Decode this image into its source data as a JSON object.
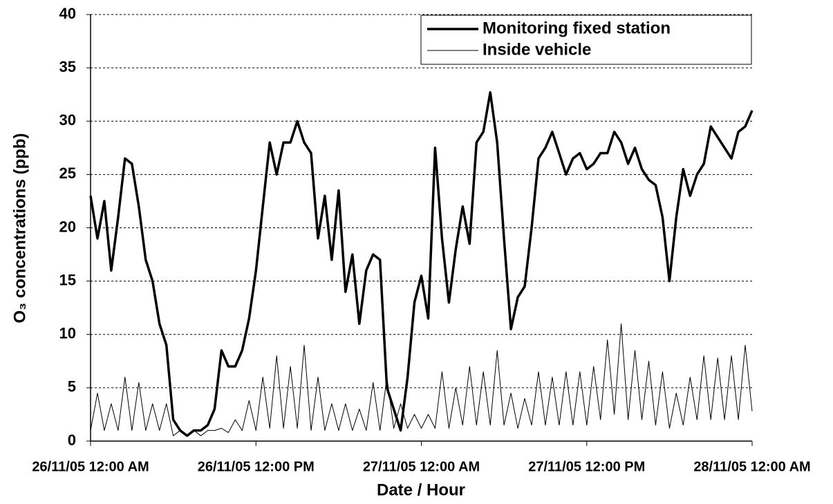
{
  "chart_data": {
    "type": "line",
    "xlabel": "Date / Hour",
    "ylabel": "O₃ concentrations (ppb)",
    "x": [
      "2005-11-26 00:00",
      "2005-11-26 00:30",
      "2005-11-26 01:00",
      "2005-11-26 01:30",
      "2005-11-26 02:00",
      "2005-11-26 02:30",
      "2005-11-26 03:00",
      "2005-11-26 03:30",
      "2005-11-26 04:00",
      "2005-11-26 04:30",
      "2005-11-26 05:00",
      "2005-11-26 05:30",
      "2005-11-26 06:00",
      "2005-11-26 06:30",
      "2005-11-26 07:00",
      "2005-11-26 07:30",
      "2005-11-26 08:00",
      "2005-11-26 08:30",
      "2005-11-26 09:00",
      "2005-11-26 09:30",
      "2005-11-26 10:00",
      "2005-11-26 10:30",
      "2005-11-26 11:00",
      "2005-11-26 11:30",
      "2005-11-26 12:00",
      "2005-11-26 12:30",
      "2005-11-26 13:00",
      "2005-11-26 13:30",
      "2005-11-26 14:00",
      "2005-11-26 14:30",
      "2005-11-26 15:00",
      "2005-11-26 15:30",
      "2005-11-26 16:00",
      "2005-11-26 16:30",
      "2005-11-26 17:00",
      "2005-11-26 17:30",
      "2005-11-26 18:00",
      "2005-11-26 18:30",
      "2005-11-26 19:00",
      "2005-11-26 19:30",
      "2005-11-26 20:00",
      "2005-11-26 20:30",
      "2005-11-26 21:00",
      "2005-11-26 21:30",
      "2005-11-26 22:00",
      "2005-11-26 22:30",
      "2005-11-26 23:00",
      "2005-11-26 23:30",
      "2005-11-27 00:00",
      "2005-11-27 00:30",
      "2005-11-27 01:00",
      "2005-11-27 01:30",
      "2005-11-27 02:00",
      "2005-11-27 02:30",
      "2005-11-27 03:00",
      "2005-11-27 03:30",
      "2005-11-27 04:00",
      "2005-11-27 04:30",
      "2005-11-27 05:00",
      "2005-11-27 05:30",
      "2005-11-27 06:00",
      "2005-11-27 06:30",
      "2005-11-27 07:00",
      "2005-11-27 07:30",
      "2005-11-27 08:00",
      "2005-11-27 08:30",
      "2005-11-27 09:00",
      "2005-11-27 09:30",
      "2005-11-27 10:00",
      "2005-11-27 10:30",
      "2005-11-27 11:00",
      "2005-11-27 11:30",
      "2005-11-27 12:00",
      "2005-11-27 12:30",
      "2005-11-27 13:00",
      "2005-11-27 13:30",
      "2005-11-27 14:00",
      "2005-11-27 14:30",
      "2005-11-27 15:00",
      "2005-11-27 15:30",
      "2005-11-27 16:00",
      "2005-11-27 16:30",
      "2005-11-27 17:00",
      "2005-11-27 17:30",
      "2005-11-27 18:00",
      "2005-11-27 18:30",
      "2005-11-27 19:00",
      "2005-11-27 19:30",
      "2005-11-27 20:00",
      "2005-11-27 20:30",
      "2005-11-27 21:00",
      "2005-11-27 21:30",
      "2005-11-27 22:00",
      "2005-11-27 22:30",
      "2005-11-27 23:00",
      "2005-11-27 23:30",
      "2005-11-28 00:00"
    ],
    "series": [
      {
        "name": "Monitoring fixed station",
        "color": "#000000",
        "width": 3.5,
        "values": [
          23,
          19,
          22.5,
          16,
          21,
          26.5,
          26,
          22,
          17,
          15,
          11,
          9,
          2,
          1,
          0.5,
          1,
          1,
          1.5,
          3,
          8.5,
          7,
          7,
          8.5,
          11.5,
          16,
          22,
          28,
          25,
          28,
          28,
          30,
          28,
          27,
          19,
          23,
          17,
          23.5,
          14,
          17.5,
          11,
          16,
          17.5,
          17,
          5,
          3,
          1,
          6,
          13,
          15.5,
          11.5,
          27.5,
          19,
          13,
          18,
          22,
          18.5,
          28,
          29,
          32.7,
          28,
          19,
          10.5,
          13.5,
          14.5,
          20,
          26.5,
          27.5,
          29,
          27,
          25,
          26.5,
          27,
          25.5,
          26,
          27,
          27,
          29,
          28,
          26,
          27.5,
          25.5,
          24.5,
          24,
          21,
          15,
          21,
          25.5,
          23,
          25,
          26,
          29.5,
          28.5,
          27.5,
          26.5,
          29,
          29.5,
          31
        ]
      },
      {
        "name": "Inside vehicle",
        "color": "#000000",
        "width": 1,
        "values": [
          1,
          4.5,
          1,
          3.5,
          1,
          6,
          1,
          5.5,
          1,
          3.5,
          1,
          3.5,
          0.5,
          1,
          0.5,
          1,
          0.5,
          1,
          1,
          1.2,
          0.8,
          2,
          1,
          3.8,
          1,
          6,
          1.2,
          8,
          1.2,
          7,
          1.2,
          9,
          1,
          6,
          1,
          3.5,
          1,
          3.5,
          1,
          3,
          1,
          5.5,
          1,
          6,
          1.2,
          3.5,
          1.2,
          2.5,
          1.2,
          2.5,
          1.2,
          6.5,
          1.2,
          5,
          1.5,
          7,
          1.5,
          6.5,
          1.5,
          8.5,
          1.5,
          4.5,
          1.2,
          4,
          1.5,
          6.5,
          1.5,
          6,
          1.5,
          6.5,
          1.5,
          6.5,
          1.5,
          7,
          2,
          9.5,
          2.5,
          11,
          2,
          8.5,
          2,
          7.5,
          1.5,
          6.5,
          1.2,
          4.5,
          1.5,
          6,
          2,
          8,
          2,
          7.8,
          2,
          8,
          2,
          9,
          2.8
        ]
      }
    ],
    "xlim": [
      "2005-11-26 00:00",
      "2005-11-28 00:00"
    ],
    "xticks": [
      {
        "value": "2005-11-26 00:00",
        "label": "26/11/05 12:00 AM"
      },
      {
        "value": "2005-11-26 12:00",
        "label": "26/11/05 12:00 PM"
      },
      {
        "value": "2005-11-27 00:00",
        "label": "27/11/05 12:00 AM"
      },
      {
        "value": "2005-11-27 12:00",
        "label": "27/11/05 12:00 PM"
      },
      {
        "value": "2005-11-28 00:00",
        "label": "28/11/05 12:00 AM"
      }
    ],
    "ylim": [
      0,
      40
    ],
    "yticks": [
      0,
      5,
      10,
      15,
      20,
      25,
      30,
      35,
      40
    ],
    "grid": true,
    "legend": "upper right"
  }
}
